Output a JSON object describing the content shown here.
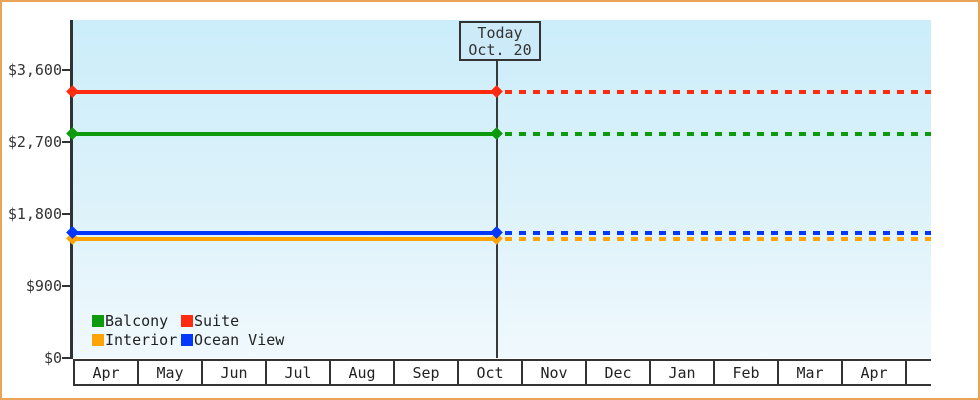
{
  "today_flag": {
    "line1": "Today",
    "line2": "Oct. 20"
  },
  "axis": {
    "y_ticks": [
      {
        "label": "$3,600",
        "value": 3600
      },
      {
        "label": "$2,700",
        "value": 2700
      },
      {
        "label": "$1,800",
        "value": 1800
      },
      {
        "label": "$900",
        "value": 900
      },
      {
        "label": "$0",
        "value": 0
      }
    ],
    "months": [
      "Apr",
      "May",
      "Jun",
      "Jul",
      "Aug",
      "Sep",
      "Oct",
      "Nov",
      "Dec",
      "Jan",
      "Feb",
      "Mar",
      "Apr"
    ]
  },
  "series": [
    {
      "name": "Suite",
      "color": "#fe2b10",
      "price": 3325
    },
    {
      "name": "Balcony",
      "color": "#0d9b0d",
      "price": 2800
    },
    {
      "name": "Interior",
      "color": "#ffa407",
      "price": 1490
    },
    {
      "name": "Ocean View",
      "color": "#0337fb",
      "price": 1565
    }
  ],
  "legend": {
    "items": [
      {
        "label": "Balcony",
        "color": "#0d9b0d"
      },
      {
        "label": "Suite",
        "color": "#fe2b10"
      },
      {
        "label": "Interior",
        "color": "#ffa407"
      },
      {
        "label": "Ocean View",
        "color": "#0337fb"
      }
    ]
  },
  "colors": {
    "frame_border": "#e9a458",
    "plot_background_top": "#cbedfa",
    "plot_background_bottom": "#f0f9fd",
    "axis": "#2e3436",
    "today_box_fill": "#cdeaf8",
    "text": "#333333"
  },
  "chart_data": {
    "type": "line",
    "x": [
      "Apr",
      "May",
      "Jun",
      "Jul",
      "Aug",
      "Sep",
      "Oct",
      "Nov",
      "Dec",
      "Jan",
      "Feb",
      "Mar",
      "Apr"
    ],
    "series": [
      {
        "name": "Suite",
        "color": "#fe2b10",
        "values": [
          3325,
          3325,
          3325,
          3325,
          3325,
          3325,
          3325,
          3325,
          3325,
          3325,
          3325,
          3325,
          3325
        ]
      },
      {
        "name": "Balcony",
        "color": "#0d9b0d",
        "values": [
          2800,
          2800,
          2800,
          2800,
          2800,
          2800,
          2800,
          2800,
          2800,
          2800,
          2800,
          2800,
          2800
        ]
      },
      {
        "name": "Ocean View",
        "color": "#0337fb",
        "values": [
          1565,
          1565,
          1565,
          1565,
          1565,
          1565,
          1565,
          1565,
          1565,
          1565,
          1565,
          1565,
          1565
        ]
      },
      {
        "name": "Interior",
        "color": "#ffa407",
        "values": [
          1490,
          1490,
          1490,
          1490,
          1490,
          1490,
          1490,
          1490,
          1490,
          1490,
          1490,
          1490,
          1490
        ]
      }
    ],
    "title": "",
    "xlabel": "",
    "ylabel": "",
    "y_ticks": [
      0,
      900,
      1800,
      2700,
      3600
    ],
    "y_tick_labels": [
      "$0",
      "$900",
      "$1,800",
      "$2,700",
      "$3,600"
    ],
    "ylim": [
      0,
      4225
    ],
    "grid": false,
    "legend_position": "bottom-left inside plot",
    "annotations": [
      {
        "label": "Today",
        "date": "Oct. 20",
        "x": "Oct 20"
      }
    ],
    "line_style": "solid from Apr through Oct 20 (today), dashed projection from Oct 20 through Apr; diamond markers at series start and at today"
  }
}
